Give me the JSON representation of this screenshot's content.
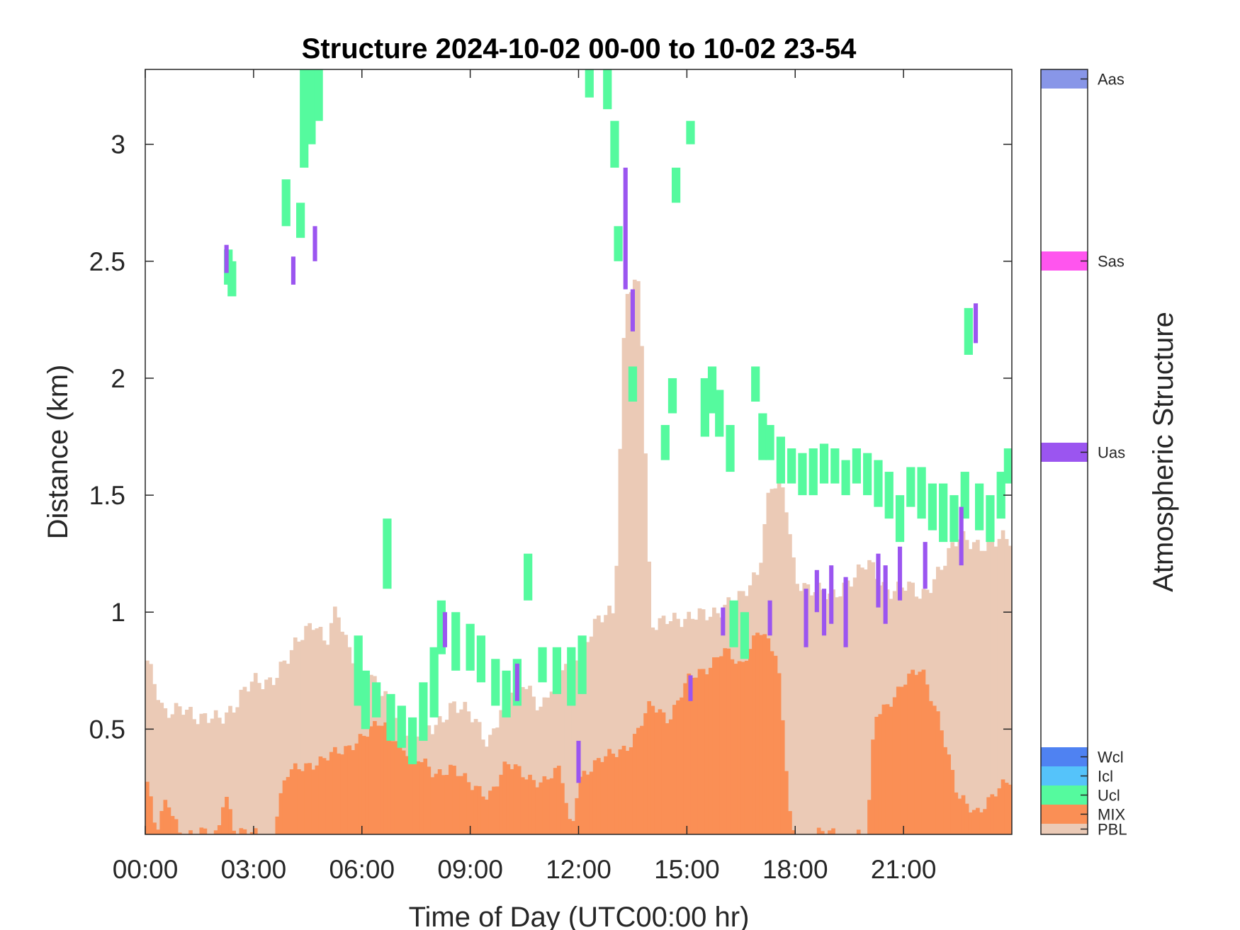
{
  "chart_data": {
    "type": "heatmap",
    "title": "Structure 2024-10-02 00-00 to 10-02 23-54",
    "xlabel": "Time of Day (UTC00:00 hr)",
    "ylabel": "Distance (km)",
    "colorbar_label": "Atmospheric Structure",
    "xlim": [
      0,
      24
    ],
    "ylim": [
      0.05,
      3.32
    ],
    "x_tick_values": [
      0,
      3,
      6,
      9,
      12,
      15,
      18,
      21
    ],
    "x_tick_labels": [
      "00:00",
      "03:00",
      "06:00",
      "09:00",
      "12:00",
      "15:00",
      "18:00",
      "21:00"
    ],
    "y_tick_values": [
      0.5,
      1,
      1.5,
      2,
      2.5,
      3
    ],
    "y_tick_labels": [
      "0.5",
      "1",
      "1.5",
      "2",
      "2.5",
      "3"
    ],
    "grid": false,
    "legend": "colorbar-right",
    "categories": [
      {
        "label": "Aas",
        "color": "#8896e8"
      },
      {
        "label": "Sas",
        "color": "#ff55ee"
      },
      {
        "label": "Uas",
        "color": "#9b55f0"
      },
      {
        "label": "Wcl",
        "color": "#4f82f2"
      },
      {
        "label": "Icl",
        "color": "#55c3fa"
      },
      {
        "label": "Ucl",
        "color": "#55fa9e"
      },
      {
        "label": "MIX",
        "color": "#fa8f55"
      },
      {
        "label": "PBL",
        "color": "#ebcab6"
      }
    ],
    "pbl_top": [
      [
        0.0,
        0.82
      ],
      [
        0.5,
        0.55
      ],
      [
        1.0,
        0.62
      ],
      [
        1.5,
        0.52
      ],
      [
        2.0,
        0.56
      ],
      [
        2.5,
        0.6
      ],
      [
        3.0,
        0.7
      ],
      [
        3.5,
        0.72
      ],
      [
        4.0,
        0.8
      ],
      [
        4.4,
        0.92
      ],
      [
        4.7,
        0.98
      ],
      [
        5.0,
        0.86
      ],
      [
        5.3,
        1.0
      ],
      [
        5.6,
        0.85
      ],
      [
        6.0,
        0.78
      ],
      [
        6.5,
        0.65
      ],
      [
        7.0,
        0.55
      ],
      [
        7.5,
        0.48
      ],
      [
        8.0,
        0.5
      ],
      [
        8.5,
        0.62
      ],
      [
        9.0,
        0.55
      ],
      [
        9.5,
        0.45
      ],
      [
        10.0,
        0.65
      ],
      [
        10.5,
        0.7
      ],
      [
        11.0,
        0.6
      ],
      [
        11.5,
        0.75
      ],
      [
        12.0,
        0.85
      ],
      [
        12.5,
        0.95
      ],
      [
        13.0,
        1.0
      ],
      [
        13.3,
        2.4
      ],
      [
        13.7,
        2.4
      ],
      [
        14.0,
        0.92
      ],
      [
        14.5,
        1.0
      ],
      [
        15.0,
        0.95
      ],
      [
        15.5,
        1.0
      ],
      [
        16.0,
        1.02
      ],
      [
        16.5,
        1.05
      ],
      [
        17.0,
        1.2
      ],
      [
        17.3,
        1.55
      ],
      [
        17.7,
        1.5
      ],
      [
        18.0,
        1.15
      ],
      [
        18.5,
        1.1
      ],
      [
        19.0,
        1.05
      ],
      [
        19.5,
        1.15
      ],
      [
        20.0,
        1.2
      ],
      [
        20.5,
        1.1
      ],
      [
        21.0,
        1.12
      ],
      [
        21.5,
        1.05
      ],
      [
        22.0,
        1.2
      ],
      [
        22.5,
        1.3
      ],
      [
        23.0,
        1.3
      ],
      [
        24.0,
        1.3
      ]
    ],
    "mix_top": [
      [
        0.0,
        0.32
      ],
      [
        0.3,
        0.05
      ],
      [
        0.6,
        0.2
      ],
      [
        1.0,
        0.05
      ],
      [
        2.0,
        0.05
      ],
      [
        2.2,
        0.25
      ],
      [
        2.5,
        0.05
      ],
      [
        3.5,
        0.05
      ],
      [
        3.9,
        0.3
      ],
      [
        4.5,
        0.35
      ],
      [
        5.0,
        0.38
      ],
      [
        5.5,
        0.4
      ],
      [
        6.0,
        0.48
      ],
      [
        6.5,
        0.52
      ],
      [
        7.0,
        0.45
      ],
      [
        7.5,
        0.38
      ],
      [
        8.0,
        0.3
      ],
      [
        8.5,
        0.35
      ],
      [
        9.0,
        0.25
      ],
      [
        9.5,
        0.22
      ],
      [
        10.0,
        0.35
      ],
      [
        10.5,
        0.3
      ],
      [
        11.0,
        0.28
      ],
      [
        11.5,
        0.32
      ],
      [
        11.8,
        0.05
      ],
      [
        12.0,
        0.3
      ],
      [
        12.5,
        0.35
      ],
      [
        13.0,
        0.4
      ],
      [
        13.5,
        0.45
      ],
      [
        14.0,
        0.6
      ],
      [
        14.5,
        0.55
      ],
      [
        15.0,
        0.7
      ],
      [
        15.5,
        0.75
      ],
      [
        16.0,
        0.85
      ],
      [
        16.5,
        0.75
      ],
      [
        17.0,
        0.95
      ],
      [
        17.5,
        0.8
      ],
      [
        17.9,
        0.05
      ],
      [
        20.0,
        0.05
      ],
      [
        20.2,
        0.55
      ],
      [
        20.5,
        0.6
      ],
      [
        21.0,
        0.7
      ],
      [
        21.5,
        0.75
      ],
      [
        22.0,
        0.55
      ],
      [
        22.5,
        0.2
      ],
      [
        23.0,
        0.15
      ],
      [
        23.5,
        0.22
      ],
      [
        24.0,
        0.28
      ]
    ],
    "ucl_cells": [
      [
        2.3,
        2.4,
        2.55
      ],
      [
        2.4,
        2.35,
        2.5
      ],
      [
        3.9,
        2.65,
        2.85
      ],
      [
        4.3,
        2.6,
        2.75
      ],
      [
        4.4,
        2.9,
        3.32
      ],
      [
        4.6,
        3.0,
        3.32
      ],
      [
        4.8,
        3.1,
        3.32
      ],
      [
        5.9,
        0.6,
        0.9
      ],
      [
        6.1,
        0.5,
        0.75
      ],
      [
        6.4,
        0.55,
        0.7
      ],
      [
        6.7,
        1.1,
        1.4
      ],
      [
        6.8,
        0.45,
        0.65
      ],
      [
        7.1,
        0.42,
        0.6
      ],
      [
        7.4,
        0.35,
        0.55
      ],
      [
        7.7,
        0.45,
        0.7
      ],
      [
        8.0,
        0.55,
        0.85
      ],
      [
        8.2,
        0.82,
        1.05
      ],
      [
        8.6,
        0.75,
        1.0
      ],
      [
        9.0,
        0.75,
        0.95
      ],
      [
        9.3,
        0.7,
        0.9
      ],
      [
        9.7,
        0.6,
        0.8
      ],
      [
        10.0,
        0.55,
        0.75
      ],
      [
        10.3,
        0.6,
        0.8
      ],
      [
        10.6,
        1.05,
        1.25
      ],
      [
        11.0,
        0.7,
        0.85
      ],
      [
        11.4,
        0.65,
        0.85
      ],
      [
        11.8,
        0.6,
        0.85
      ],
      [
        12.1,
        0.65,
        0.9
      ],
      [
        12.3,
        3.2,
        3.32
      ],
      [
        12.8,
        3.15,
        3.32
      ],
      [
        13.0,
        2.9,
        3.1
      ],
      [
        13.1,
        2.5,
        2.65
      ],
      [
        13.5,
        1.9,
        2.05
      ],
      [
        14.4,
        1.65,
        1.8
      ],
      [
        14.6,
        1.85,
        2.0
      ],
      [
        14.7,
        2.75,
        2.9
      ],
      [
        15.1,
        3.0,
        3.1
      ],
      [
        15.5,
        1.75,
        2.0
      ],
      [
        15.7,
        1.85,
        2.05
      ],
      [
        15.9,
        1.75,
        1.95
      ],
      [
        16.2,
        1.6,
        1.8
      ],
      [
        16.3,
        0.85,
        1.05
      ],
      [
        16.6,
        0.8,
        1.0
      ],
      [
        16.9,
        1.9,
        2.05
      ],
      [
        17.1,
        1.65,
        1.85
      ],
      [
        17.3,
        1.65,
        1.8
      ],
      [
        17.6,
        1.55,
        1.75
      ],
      [
        17.9,
        1.55,
        1.7
      ],
      [
        18.2,
        1.5,
        1.68
      ],
      [
        18.5,
        1.5,
        1.7
      ],
      [
        18.8,
        1.55,
        1.72
      ],
      [
        19.1,
        1.55,
        1.7
      ],
      [
        19.4,
        1.5,
        1.65
      ],
      [
        19.7,
        1.55,
        1.7
      ],
      [
        20.0,
        1.5,
        1.68
      ],
      [
        20.3,
        1.45,
        1.65
      ],
      [
        20.6,
        1.4,
        1.6
      ],
      [
        20.9,
        1.3,
        1.5
      ],
      [
        21.2,
        1.45,
        1.62
      ],
      [
        21.5,
        1.4,
        1.62
      ],
      [
        21.8,
        1.35,
        1.55
      ],
      [
        22.1,
        1.3,
        1.55
      ],
      [
        22.4,
        1.3,
        1.5
      ],
      [
        22.7,
        1.4,
        1.6
      ],
      [
        22.8,
        2.1,
        2.3
      ],
      [
        23.1,
        1.35,
        1.55
      ],
      [
        23.4,
        1.3,
        1.5
      ],
      [
        23.7,
        1.4,
        1.6
      ],
      [
        23.9,
        1.55,
        1.7
      ]
    ],
    "uas_cells": [
      [
        2.25,
        2.45,
        2.57
      ],
      [
        4.1,
        2.4,
        2.52
      ],
      [
        4.7,
        2.5,
        2.65
      ],
      [
        8.3,
        0.85,
        1.0
      ],
      [
        10.3,
        0.62,
        0.78
      ],
      [
        12.0,
        0.27,
        0.45
      ],
      [
        13.3,
        2.38,
        2.9
      ],
      [
        13.5,
        2.2,
        2.38
      ],
      [
        15.1,
        0.62,
        0.73
      ],
      [
        16.0,
        0.9,
        1.02
      ],
      [
        17.3,
        0.9,
        1.05
      ],
      [
        18.3,
        0.85,
        1.1
      ],
      [
        18.6,
        1.0,
        1.18
      ],
      [
        18.8,
        0.9,
        1.1
      ],
      [
        19.0,
        0.95,
        1.2
      ],
      [
        19.4,
        0.85,
        1.15
      ],
      [
        20.3,
        1.02,
        1.25
      ],
      [
        20.5,
        0.95,
        1.2
      ],
      [
        20.9,
        1.05,
        1.28
      ],
      [
        21.6,
        1.1,
        1.3
      ],
      [
        22.6,
        1.2,
        1.45
      ],
      [
        23.0,
        2.15,
        2.32
      ]
    ]
  }
}
